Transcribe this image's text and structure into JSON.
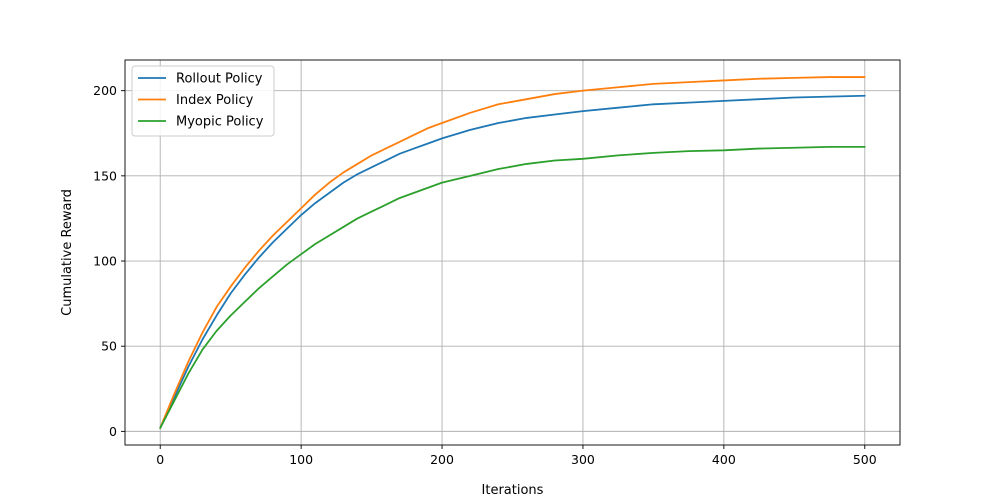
{
  "chart_data": {
    "type": "line",
    "title": "",
    "xlabel": "Iterations",
    "ylabel": "Cumulative Reward",
    "xlim": [
      -25,
      525
    ],
    "ylim": [
      -8,
      218
    ],
    "xticks": [
      0,
      100,
      200,
      300,
      400,
      500
    ],
    "yticks": [
      0,
      50,
      100,
      150,
      200
    ],
    "grid": true,
    "legend": "top-left",
    "x": [
      0,
      10,
      20,
      30,
      40,
      50,
      60,
      70,
      80,
      90,
      100,
      110,
      120,
      130,
      140,
      150,
      160,
      170,
      180,
      190,
      200,
      220,
      240,
      260,
      280,
      300,
      325,
      350,
      375,
      400,
      425,
      450,
      475,
      500
    ],
    "series": [
      {
        "name": "Rollout Policy",
        "color": "#1f77b4",
        "values": [
          2,
          20,
          38,
          54,
          68,
          81,
          92,
          102,
          111,
          119,
          127,
          134,
          140,
          146,
          151,
          155,
          159,
          163,
          166,
          169,
          172,
          177,
          181,
          184,
          186,
          188,
          190,
          192,
          193,
          194,
          195,
          196,
          196.5,
          197
        ]
      },
      {
        "name": "Index Policy",
        "color": "#ff7f0e",
        "values": [
          2,
          22,
          41,
          58,
          73,
          85,
          96,
          106,
          115,
          123,
          131,
          139,
          146,
          152,
          157,
          162,
          166,
          170,
          174,
          178,
          181,
          187,
          192,
          195,
          198,
          200,
          202,
          204,
          205,
          206,
          207,
          207.5,
          208,
          208
        ]
      },
      {
        "name": "Myopic Policy",
        "color": "#2ca02c",
        "values": [
          2,
          18,
          34,
          48,
          59,
          68,
          76,
          84,
          91,
          98,
          104,
          110,
          115,
          120,
          125,
          129,
          133,
          137,
          140,
          143,
          146,
          150,
          154,
          157,
          159,
          160,
          162,
          163.5,
          164.5,
          165,
          166,
          166.5,
          167,
          167
        ]
      }
    ]
  }
}
